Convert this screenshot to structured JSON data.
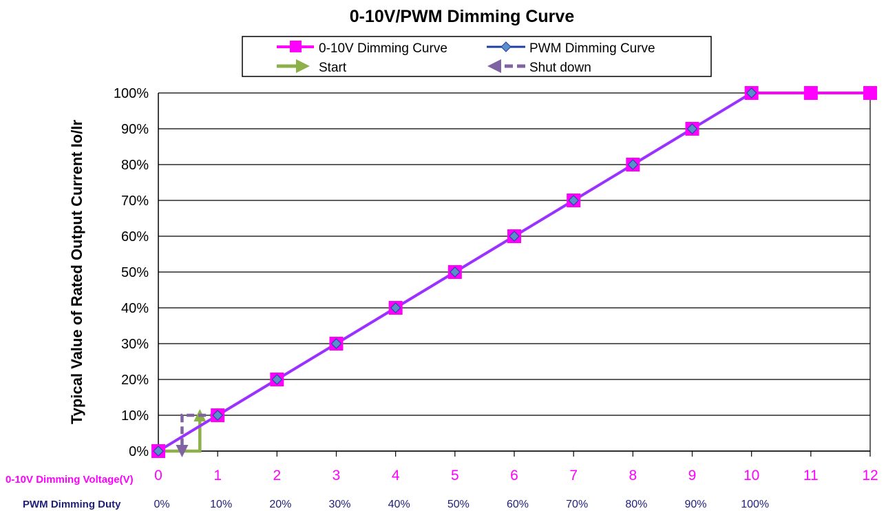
{
  "chart_data": {
    "type": "line",
    "title": "0-10V/PWM Dimming Curve",
    "ylabel": "Typical Value of Rated Output Current Io/Ir",
    "xlabel": "0-10V Dimming Voltage(V)",
    "secondary_xlabel": "PWM Dimming Duty",
    "ylim": [
      0,
      100
    ],
    "xlim": [
      0,
      12
    ],
    "grid": true,
    "legend_position": "top",
    "y_ticks": [
      "0%",
      "10%",
      "20%",
      "30%",
      "40%",
      "50%",
      "60%",
      "70%",
      "80%",
      "90%",
      "100%"
    ],
    "x_ticks": [
      "0",
      "1",
      "2",
      "3",
      "4",
      "5",
      "6",
      "7",
      "8",
      "9",
      "10",
      "11",
      "12"
    ],
    "duty_ticks": [
      "0%",
      "10%",
      "20%",
      "30%",
      "40%",
      "50%",
      "60%",
      "70%",
      "80%",
      "90%",
      "100%"
    ],
    "series": [
      {
        "name": "0-10V Dimming Curve",
        "color": "#ff00ff",
        "marker": "square",
        "x": [
          0,
          1,
          2,
          3,
          4,
          5,
          6,
          7,
          8,
          9,
          10,
          11,
          12
        ],
        "y": [
          0,
          10,
          20,
          30,
          40,
          50,
          60,
          70,
          80,
          90,
          100,
          100,
          100
        ]
      },
      {
        "name": "PWM Dimming Curve",
        "color": "#1f3f9f",
        "marker": "diamond",
        "x": [
          0,
          1,
          2,
          3,
          4,
          5,
          6,
          7,
          8,
          9,
          10
        ],
        "y": [
          0,
          10,
          20,
          30,
          40,
          50,
          60,
          70,
          80,
          90,
          100
        ]
      }
    ],
    "annotations": [
      {
        "name": "Start",
        "color": "#8db04a",
        "style": "solid-arrow",
        "path": [
          [
            0,
            0
          ],
          [
            0.7,
            0
          ],
          [
            0.7,
            10
          ]
        ]
      },
      {
        "name": "Shut down",
        "color": "#8064a2",
        "style": "dashed-arrow",
        "path": [
          [
            1,
            10
          ],
          [
            0.4,
            10
          ],
          [
            0.4,
            0
          ]
        ]
      }
    ],
    "colors": {
      "voltage_axis": "#ff00ff",
      "duty_axis": "#1f1f7a",
      "curve_line": "#7f3fff"
    }
  }
}
